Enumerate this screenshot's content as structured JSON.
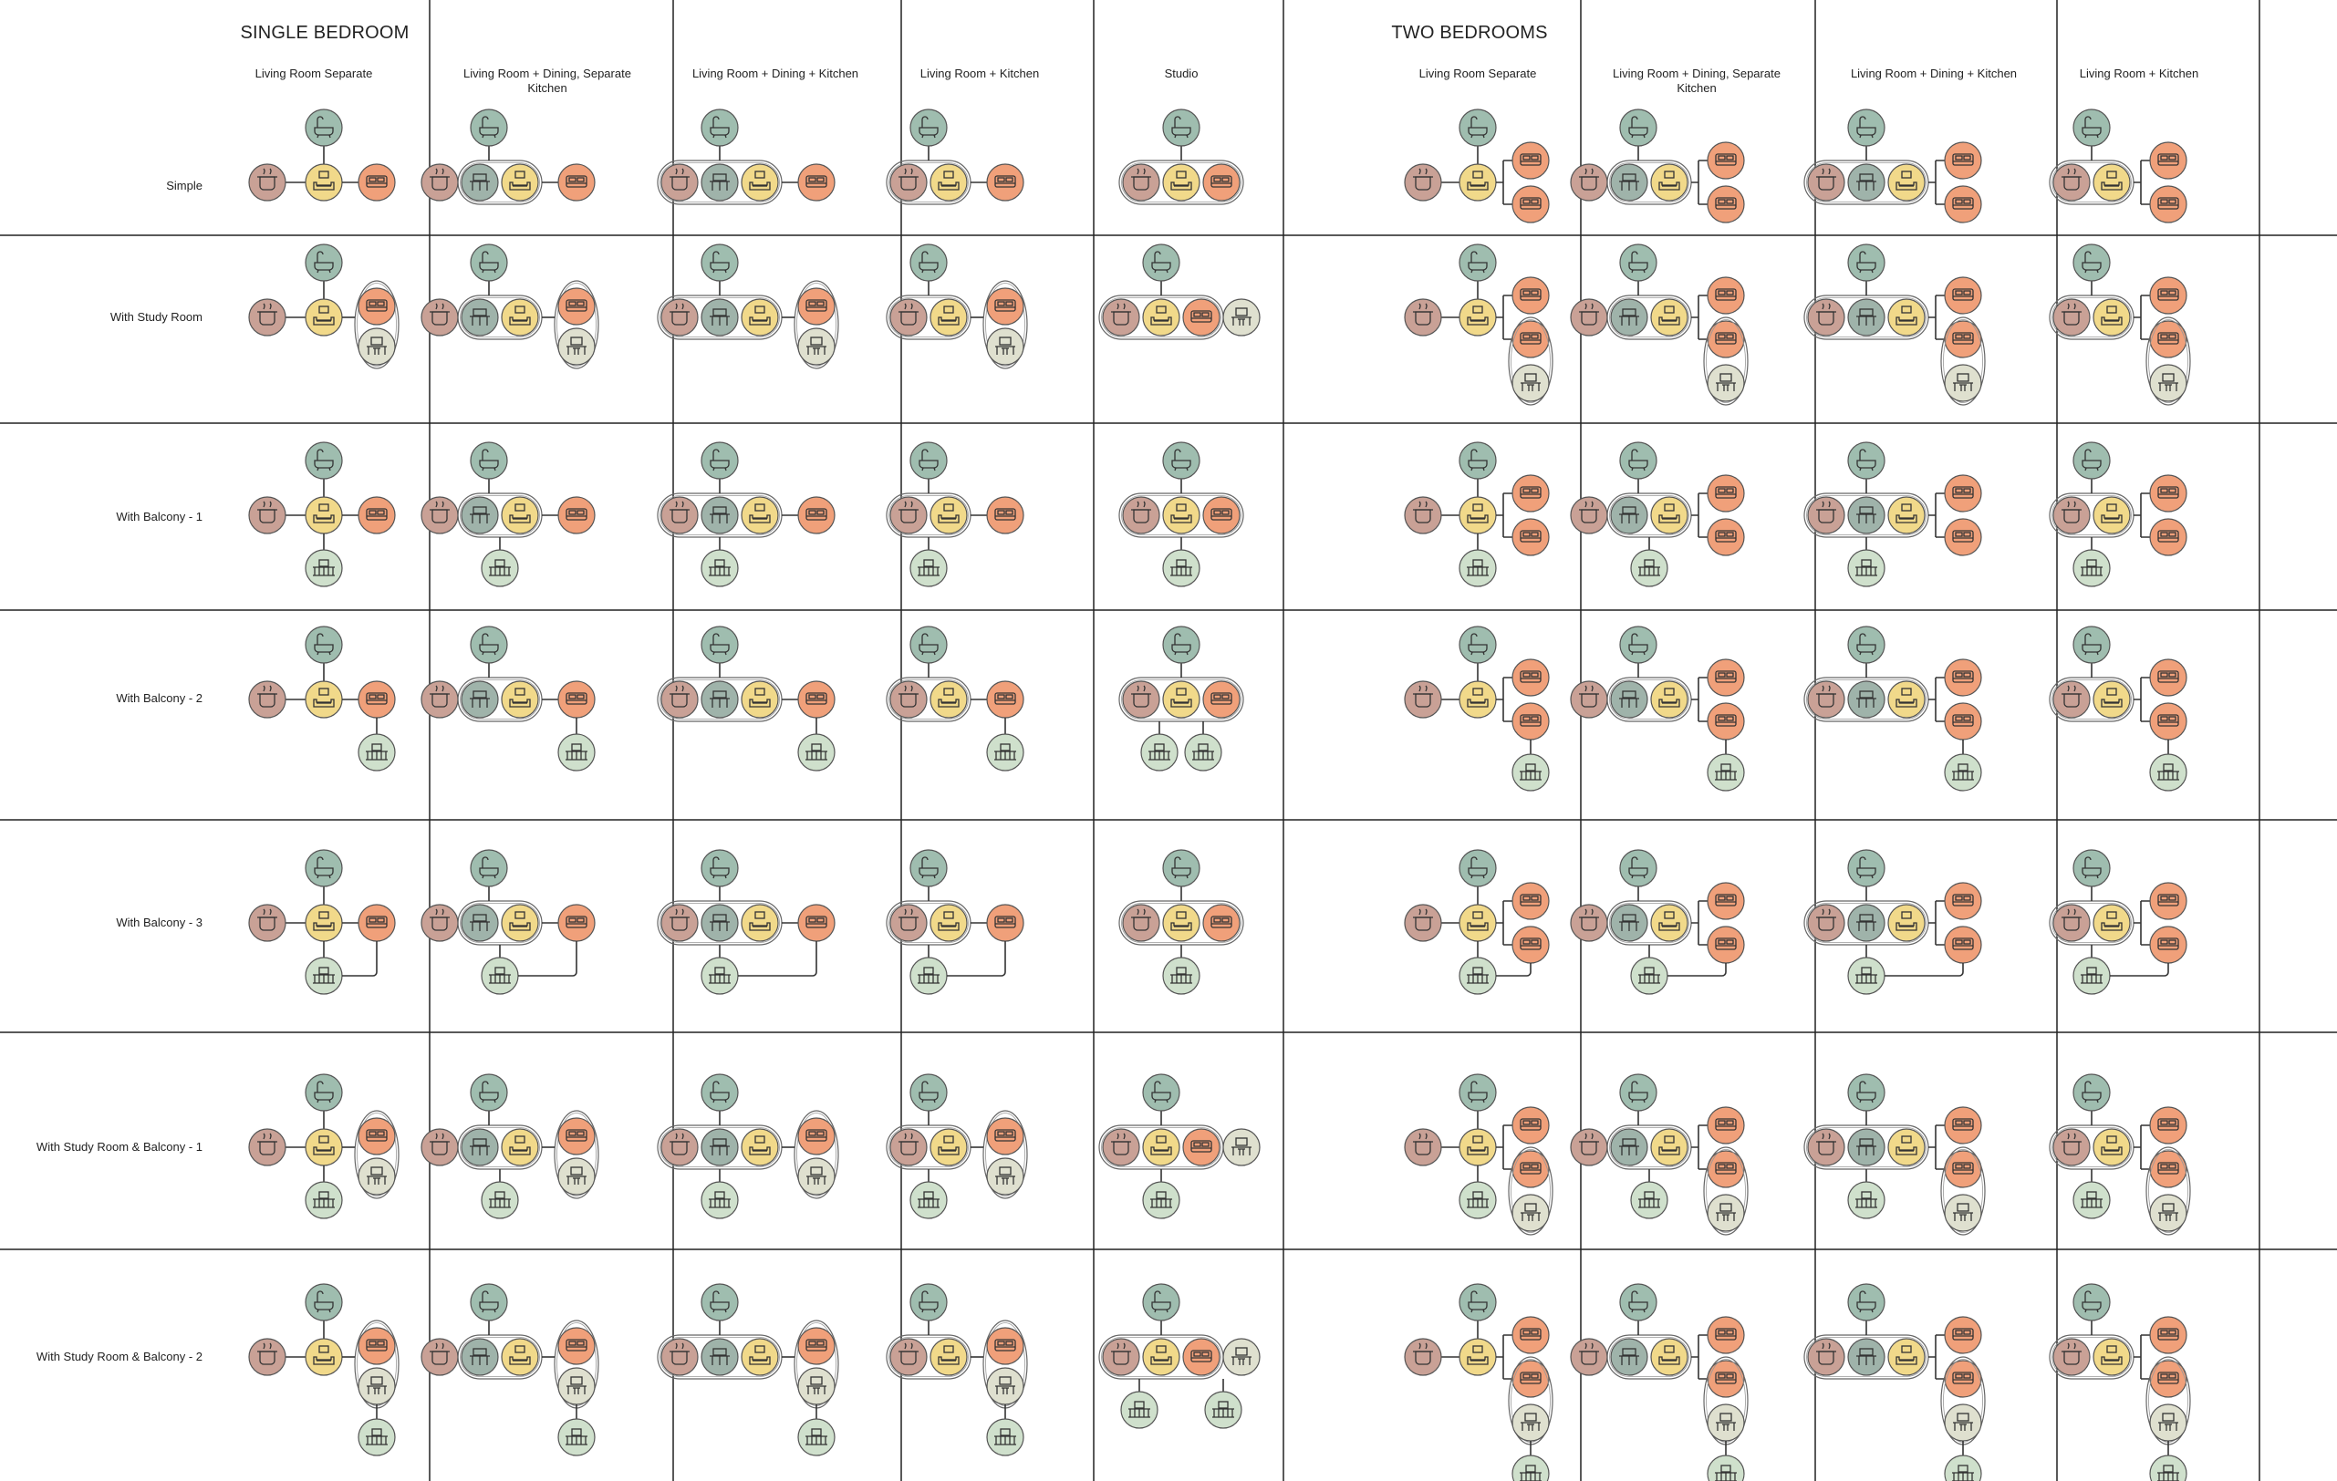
{
  "sections": [
    {
      "title": "SINGLE BEDROOM"
    },
    {
      "title": "TWO BEDROOMS"
    }
  ],
  "columns": [
    {
      "label": "Living Room Separate",
      "section": 0,
      "kind": "sep"
    },
    {
      "label": "Living Room + Dining, Separate Kitchen",
      "section": 0,
      "kind": "dining"
    },
    {
      "label": "Living Room + Dining + Kitchen",
      "section": 0,
      "kind": "ldk"
    },
    {
      "label": "Living Room + Kitchen",
      "section": 0,
      "kind": "lk"
    },
    {
      "label": "Studio",
      "section": 0,
      "kind": "studio"
    },
    {
      "label": "Living Room Separate",
      "section": 1,
      "kind": "sep"
    },
    {
      "label": "Living Room + Dining, Separate Kitchen",
      "section": 1,
      "kind": "dining"
    },
    {
      "label": "Living Room + Dining + Kitchen",
      "section": 1,
      "kind": "ldk"
    },
    {
      "label": "Living Room + Kitchen",
      "section": 1,
      "kind": "lk"
    }
  ],
  "rows": [
    {
      "label": "Simple",
      "study": false,
      "balcony": "none"
    },
    {
      "label": "With Study Room",
      "study": true,
      "balcony": "none"
    },
    {
      "label": "With Balcony - 1",
      "study": false,
      "balcony": "b1"
    },
    {
      "label": "With Balcony - 2",
      "study": false,
      "balcony": "b2"
    },
    {
      "label": "With Balcony - 3",
      "study": false,
      "balcony": "b3"
    },
    {
      "label": "With Study Room & Balcony - 1",
      "study": true,
      "balcony": "b1"
    },
    {
      "label": "With Study Room & Balcony - 2",
      "study": true,
      "balcony": "b2"
    }
  ],
  "room_types": {
    "kitchen": {
      "color": "#c9a196",
      "icon": "kitchen-icon"
    },
    "dining": {
      "color": "#9fb3aa",
      "icon": "dining-table-icon"
    },
    "living": {
      "color": "#f1d98a",
      "icon": "sofa-tv-icon"
    },
    "bedroom": {
      "color": "#f0a07a",
      "icon": "bed-icon"
    },
    "bath": {
      "color": "#9fbdaf",
      "icon": "bathtub-icon"
    },
    "balcony": {
      "color": "#cfe0cc",
      "icon": "balcony-railing-icon"
    },
    "study": {
      "color": "#dfe0cf",
      "icon": "desk-icon"
    }
  }
}
